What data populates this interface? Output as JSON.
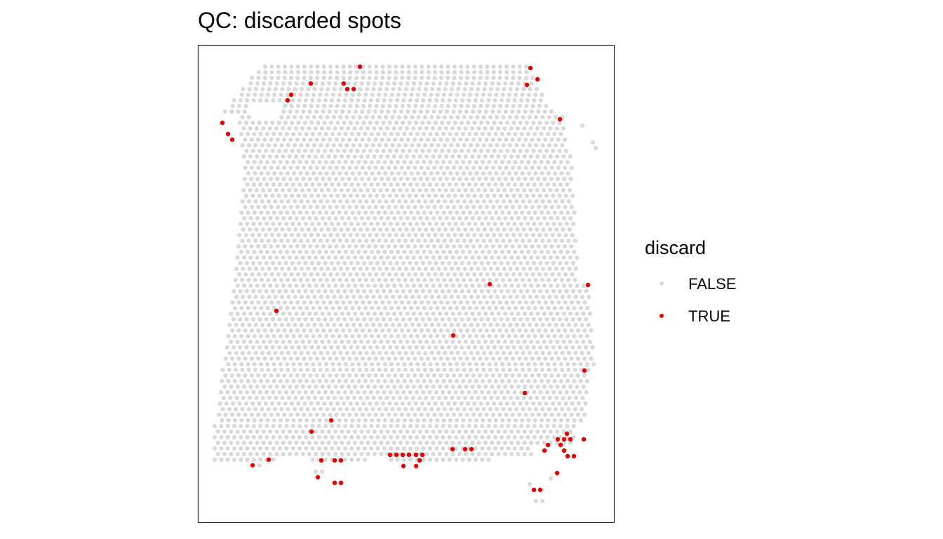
{
  "chart_data": {
    "type": "scatter",
    "title": "QC: discarded spots",
    "xlabel": "",
    "ylabel": "",
    "grid": false,
    "axes_shown": false,
    "legend": {
      "title": "discard",
      "placement": "right",
      "entries": [
        {
          "label": "FALSE",
          "color": "#d9d9d9"
        },
        {
          "label": "TRUE",
          "color": "#e80000"
        }
      ]
    },
    "series": [
      {
        "name": "TRUE",
        "points": [
          [
            513,
            95
          ],
          [
            756,
            97
          ],
          [
            443,
            119
          ],
          [
            490,
            119
          ],
          [
            766,
            113
          ],
          [
            751,
            121
          ],
          [
            495,
            127
          ],
          [
            504,
            127
          ],
          [
            415,
            135
          ],
          [
            410,
            143
          ],
          [
            317,
            175
          ],
          [
            798,
            170
          ],
          [
            325,
            191
          ],
          [
            331,
            199
          ],
          [
            698,
            405
          ],
          [
            838,
            406
          ],
          [
            394,
            443
          ],
          [
            646,
            478
          ],
          [
            833,
            528
          ],
          [
            748,
            560
          ],
          [
            472,
            599
          ],
          [
            444,
            615
          ],
          [
            808,
            618
          ],
          [
            795,
            626
          ],
          [
            804,
            626
          ],
          [
            813,
            626
          ],
          [
            832,
            626
          ],
          [
            781,
            634
          ],
          [
            799,
            634
          ],
          [
            645,
            640
          ],
          [
            663,
            640
          ],
          [
            672,
            640
          ],
          [
            776,
            642
          ],
          [
            804,
            642
          ],
          [
            556,
            648
          ],
          [
            565,
            648
          ],
          [
            574,
            648
          ],
          [
            583,
            648
          ],
          [
            593,
            648
          ],
          [
            602,
            648
          ],
          [
            809,
            650
          ],
          [
            818,
            650
          ],
          [
            383,
            655
          ],
          [
            458,
            656
          ],
          [
            477,
            656
          ],
          [
            486,
            656
          ],
          [
            598,
            656
          ],
          [
            360,
            663
          ],
          [
            575,
            664
          ],
          [
            593,
            664
          ],
          [
            794,
            674
          ],
          [
            453,
            680
          ],
          [
            477,
            688
          ],
          [
            486,
            688
          ],
          [
            761,
            698
          ],
          [
            770,
            698
          ]
        ]
      },
      {
        "name": "FALSE",
        "points": []
      }
    ]
  }
}
